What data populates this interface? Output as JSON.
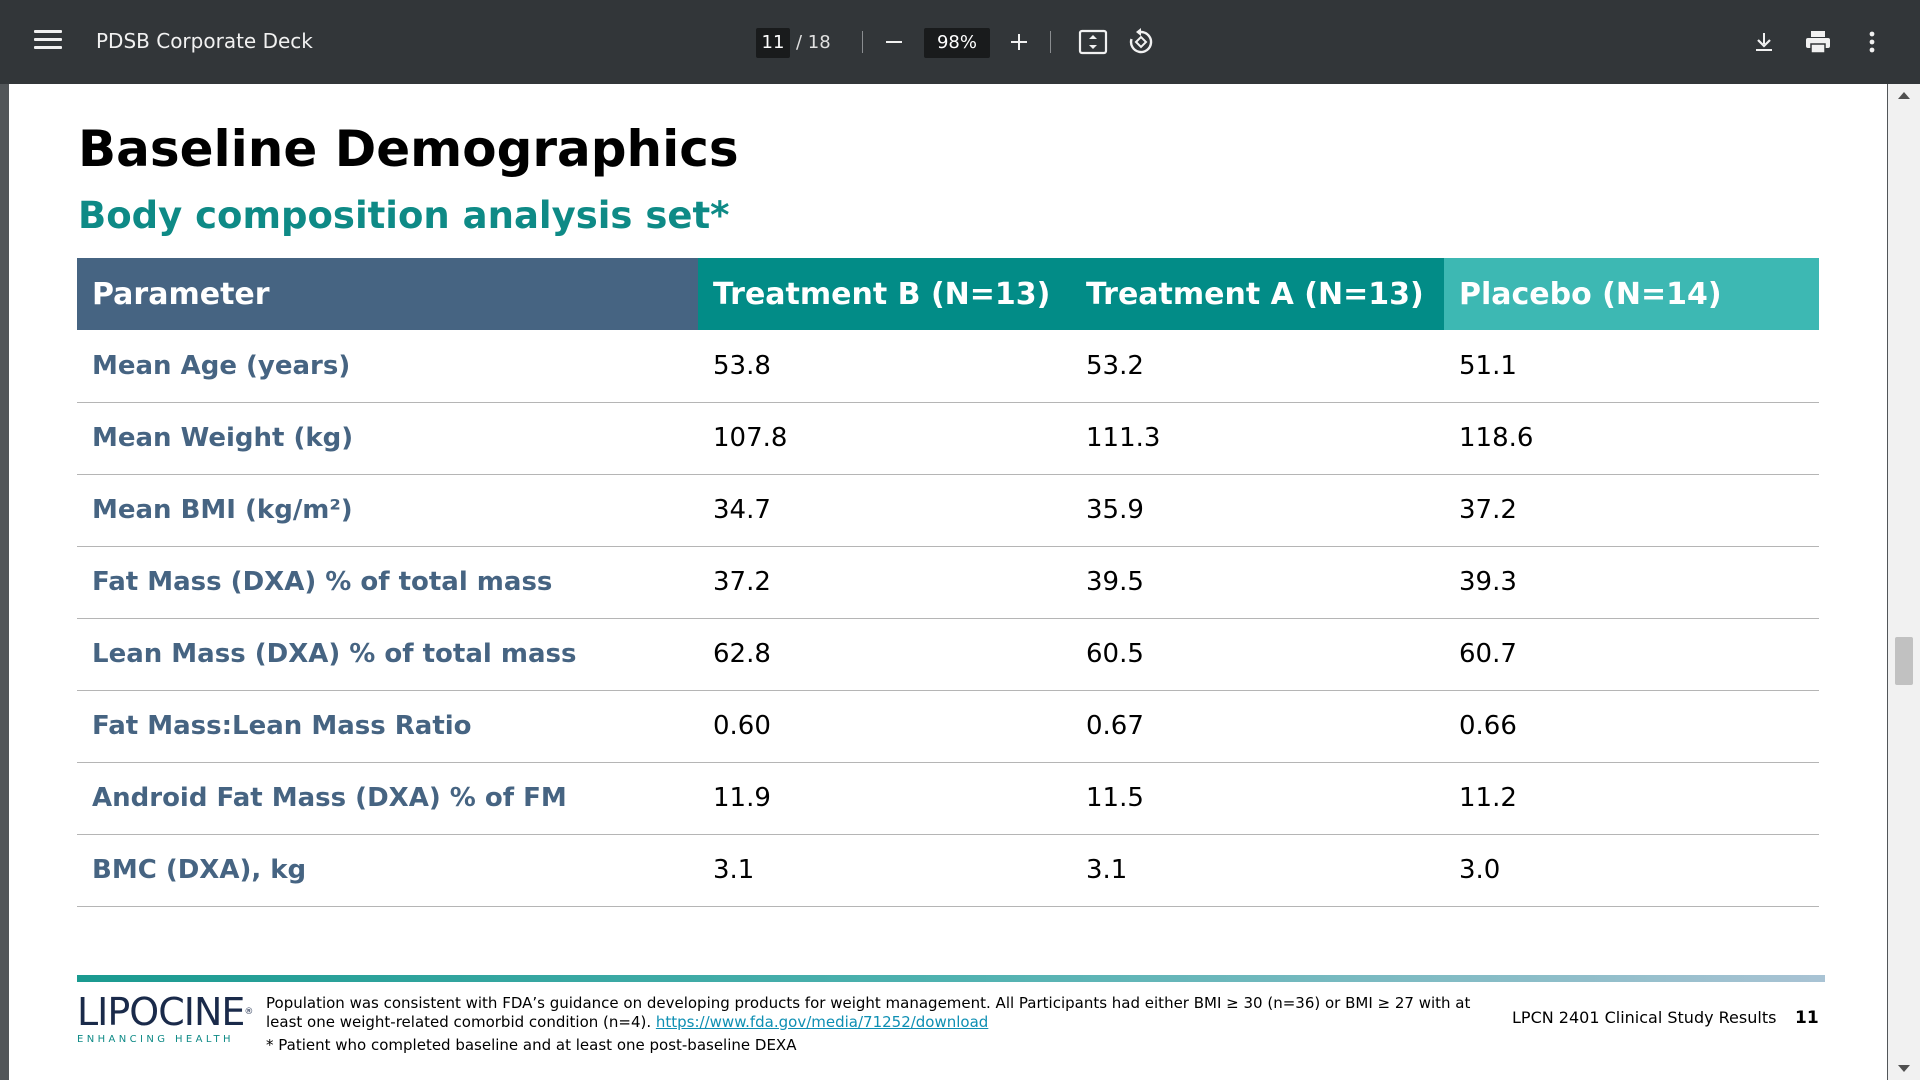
{
  "toolbar": {
    "title": "PDSB Corporate Deck",
    "page_current": "11",
    "page_total": "/ 18",
    "zoom": "98%",
    "icons": [
      "menu-icon",
      "zoom-out-icon",
      "zoom-in-icon",
      "fit-page-icon",
      "rotate-icon",
      "download-icon",
      "print-icon",
      "more-icon"
    ]
  },
  "slide": {
    "title": "Baseline Demographics",
    "subtitle": "Body composition analysis set*",
    "table": {
      "headers": [
        "Parameter",
        "Treatment B (N=13)",
        "Treatment A (N=13)",
        "Placebo (N=14)"
      ],
      "rows": [
        [
          "Mean Age (years)",
          "53.8",
          "53.2",
          "51.1"
        ],
        [
          "Mean Weight (kg)",
          "107.8",
          "111.3",
          "118.6"
        ],
        [
          "Mean BMI (kg/m²)",
          "34.7",
          "35.9",
          "37.2"
        ],
        [
          "Fat Mass (DXA) % of total mass",
          "37.2",
          "39.5",
          "39.3"
        ],
        [
          "Lean Mass (DXA) % of total mass",
          "62.8",
          "60.5",
          "60.7"
        ],
        [
          "Fat Mass:Lean Mass Ratio",
          "0.60",
          "0.67",
          "0.66"
        ],
        [
          "Android Fat Mass (DXA) % of FM",
          "11.9",
          "11.5",
          "11.2"
        ],
        [
          "BMC (DXA), kg",
          "3.1",
          "3.1",
          "3.0"
        ]
      ]
    },
    "footer": {
      "logo_word": "LIPOCINE",
      "logo_reg": "®",
      "logo_tag": "ENHANCING HEALTH",
      "population_text": "Population was consistent with FDA’s guidance on developing products for weight management. All Participants had either BMI ≥ 30 (n=36) or BMI ≥ 27 with at least one weight-related comorbid condition (n=4). ",
      "link": "https://www.fda.gov/media/71252/download",
      "note": "* Patient who completed baseline and at least one post-baseline DEXA",
      "study": "LPCN 2401 Clinical Study Results",
      "page_number": "11"
    }
  },
  "colors": {
    "toolbar_bg": "#323639",
    "header_param": "#466482",
    "header_treatment": "#028c87",
    "header_placebo": "#3db8b3",
    "subtitle": "#0e8a86"
  }
}
